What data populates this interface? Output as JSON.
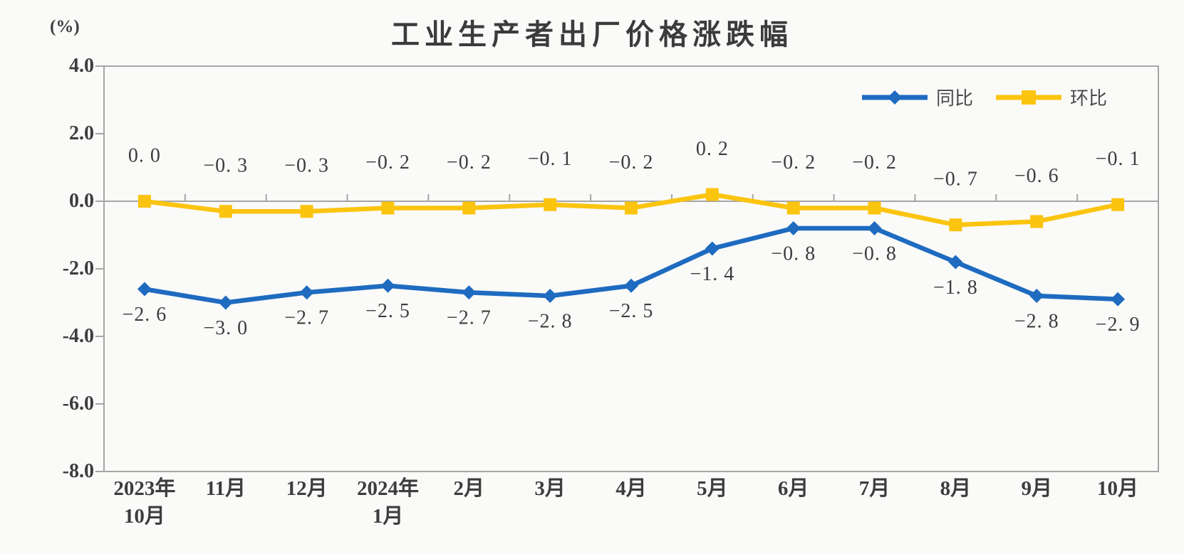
{
  "chart_data": {
    "type": "line",
    "title": "工业生产者出厂价格涨跌幅",
    "unit": "(%)",
    "categories": [
      "2023年\n10月",
      "11月",
      "12月",
      "2024年\n1月",
      "2月",
      "3月",
      "4月",
      "5月",
      "6月",
      "7月",
      "8月",
      "9月",
      "10月"
    ],
    "ylim": [
      -8.0,
      4.0
    ],
    "ytick_step": 2.0,
    "ytick_labels": [
      "4.0",
      "2.0",
      "0.0",
      "-2.0",
      "-4.0",
      "-6.0",
      "-8.0"
    ],
    "grid": false,
    "legend_position": "top-right-inside",
    "axis_color": "#a6a6a6",
    "text_color": "#3d3d3d",
    "series": [
      {
        "name": "同比",
        "color": "#1e6bc0",
        "marker": "diamond",
        "label_position": "below",
        "values": [
          -2.6,
          -3.0,
          -2.7,
          -2.5,
          -2.7,
          -2.8,
          -2.5,
          -1.4,
          -0.8,
          -0.8,
          -1.8,
          -2.8,
          -2.9
        ],
        "labels": [
          "−2. 6",
          "−3. 0",
          "−2. 7",
          "−2. 5",
          "−2. 7",
          "−2. 8",
          "−2. 5",
          "−1. 4",
          "−0. 8",
          "−0. 8",
          "−1. 8",
          "−2. 8",
          "−2. 9"
        ]
      },
      {
        "name": "环比",
        "color": "#fbc40f",
        "marker": "square",
        "label_position": "above",
        "values": [
          0.0,
          -0.3,
          -0.3,
          -0.2,
          -0.2,
          -0.1,
          -0.2,
          0.2,
          -0.2,
          -0.2,
          -0.7,
          -0.6,
          -0.1
        ],
        "labels": [
          "0. 0",
          "−0. 3",
          "−0. 3",
          "−0. 2",
          "−0. 2",
          "−0. 1",
          "−0. 2",
          "0. 2",
          "−0. 2",
          "−0. 2",
          "−0. 7",
          "−0. 6",
          "−0. 1"
        ]
      }
    ]
  }
}
